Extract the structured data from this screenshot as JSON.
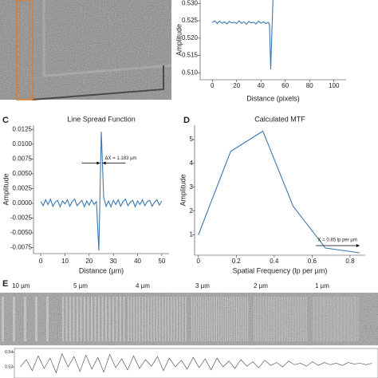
{
  "figure": {
    "panel_labels": [
      "C",
      "D",
      "E"
    ],
    "bar_labels": [
      "10 µm",
      "5 µm",
      "4 µm",
      "3 µm",
      "2 µm",
      "1 µm"
    ]
  },
  "chart_data": [
    {
      "type": "line",
      "xlabel": "Distance (pixels)",
      "ylabel": "Amplitude",
      "color": "#3b78b0",
      "x": [
        0,
        2,
        4,
        6,
        8,
        10,
        12,
        14,
        16,
        18,
        20,
        22,
        24,
        26,
        28,
        30,
        32,
        34,
        36,
        38,
        40,
        42,
        44,
        46,
        47,
        48,
        49,
        50
      ],
      "values": [
        0.5245,
        0.525,
        0.5242,
        0.5249,
        0.5243,
        0.5247,
        0.5241,
        0.5248,
        0.5244,
        0.5246,
        0.5242,
        0.525,
        0.5243,
        0.5247,
        0.524,
        0.5248,
        0.5244,
        0.5246,
        0.5241,
        0.5249,
        0.5243,
        0.5247,
        0.5242,
        0.5246,
        0.524,
        0.511,
        0.522,
        0.532
      ],
      "xlim": [
        -10,
        110
      ],
      "ylim": [
        0.508,
        0.531
      ],
      "xticks": [
        0,
        20,
        40,
        60,
        80,
        100
      ],
      "yticks": [
        {
          "value": 0.53,
          "label": "0.530"
        },
        0.525,
        {
          "value": 0.52,
          "label": "0.520"
        },
        0.515,
        {
          "value": 0.51,
          "label": "0.510"
        }
      ]
    },
    {
      "type": "line",
      "title": "Line Spread Function",
      "xlabel": "Distance (µm)",
      "ylabel": "Amplitude",
      "color": "#3b78b0",
      "annotation": "ΔX = 1.183 µm",
      "x": [
        0,
        1,
        2,
        3,
        4,
        5,
        6,
        7,
        8,
        9,
        10,
        11,
        12,
        13,
        14,
        15,
        16,
        17,
        18,
        19,
        20,
        21,
        22,
        23,
        24,
        25,
        26,
        27,
        28,
        29,
        30,
        31,
        32,
        33,
        34,
        35,
        36,
        37,
        38,
        39,
        40,
        41,
        42,
        43,
        44,
        45,
        46,
        47,
        48,
        49,
        50
      ],
      "values": [
        0.0003,
        -0.0004,
        0.0006,
        -0.0002,
        0.0007,
        -0.0005,
        0.0002,
        0.0005,
        -0.0006,
        0.0004,
        -0.0001,
        0.0006,
        -0.0005,
        0.0003,
        0.0007,
        -0.0004,
        0.0001,
        0.0005,
        -0.0006,
        0.0004,
        -0.0003,
        0.0006,
        -0.0002,
        0.0003,
        -0.008,
        0.0121,
        0.001,
        -0.0005,
        0.0004,
        -0.0006,
        0.0005,
        -0.0002,
        0.0006,
        -0.0005,
        0.0003,
        0.0007,
        -0.0004,
        0.0002,
        0.0005,
        -0.0006,
        0.0004,
        -0.0002,
        0.0006,
        -0.0004,
        0.0003,
        0.0005,
        -0.0005,
        0.0002,
        0.0006,
        -0.0003,
        0.0004
      ],
      "xlim": [
        -3,
        53
      ],
      "ylim": [
        -0.0085,
        0.0132
      ],
      "xticks": [
        0,
        10,
        20,
        30,
        40,
        50
      ],
      "yticks": [
        0.0125,
        {
          "value": 0.01,
          "label": "0.0100"
        },
        0.0075,
        {
          "value": 0.005,
          "label": "0.0050"
        },
        0.0025,
        {
          "value": 0,
          "label": "0.0000"
        },
        -0.0025,
        {
          "value": -0.005,
          "label": "-0.0050"
        },
        -0.0075
      ]
    },
    {
      "type": "line",
      "title": "Calculated MTF",
      "xlabel": "Spatial Frequency (lp per µm)",
      "ylabel": "Amplitude",
      "color": "#3b78b0",
      "annotation": "X = 0.85 lp per µm",
      "x": [
        0,
        0.17,
        0.34,
        0.5,
        0.67,
        0.85
      ],
      "values": [
        1,
        4.5,
        5.35,
        2.2,
        0.45,
        0.25
      ],
      "xlim": [
        -0.02,
        0.88
      ],
      "ylim": [
        0.15,
        5.6
      ],
      "xticks": [
        0,
        0.2,
        0.4,
        0.6,
        0.8
      ],
      "yticks": [
        1,
        2,
        3,
        4,
        5
      ]
    },
    {
      "type": "line",
      "color": "#444444",
      "x": [
        0,
        1,
        2,
        3,
        4,
        5,
        6,
        7,
        8,
        9,
        10,
        11,
        12,
        13,
        14,
        15,
        16,
        17,
        18,
        19,
        20,
        21,
        22,
        23,
        24,
        25,
        26,
        27,
        28,
        29,
        30,
        31,
        32,
        33,
        34,
        35,
        36,
        37,
        38,
        39,
        40,
        41,
        42,
        43,
        44,
        45,
        46,
        47,
        48,
        49,
        50,
        51,
        52,
        53,
        54,
        55,
        56,
        57,
        58,
        59
      ],
      "values": [
        0.52,
        0.53,
        0.515,
        0.535,
        0.518,
        0.532,
        0.512,
        0.538,
        0.52,
        0.534,
        0.514,
        0.536,
        0.517,
        0.533,
        0.513,
        0.537,
        0.519,
        0.531,
        0.516,
        0.535,
        0.518,
        0.53,
        0.521,
        0.534,
        0.515,
        0.532,
        0.52,
        0.529,
        0.517,
        0.533,
        0.519,
        0.531,
        0.516,
        0.532,
        0.52,
        0.528,
        0.518,
        0.53,
        0.521,
        0.527,
        0.519,
        0.529,
        0.522,
        0.526,
        0.52,
        0.528,
        0.523,
        0.525,
        0.521,
        0.527,
        0.522,
        0.526,
        0.523,
        0.525,
        0.522,
        0.526,
        0.524,
        0.525,
        0.523,
        0.525
      ],
      "xlim": [
        -1,
        60
      ],
      "ylim": [
        0.505,
        0.545
      ],
      "yticks": [
        0.54,
        0.52
      ]
    }
  ]
}
